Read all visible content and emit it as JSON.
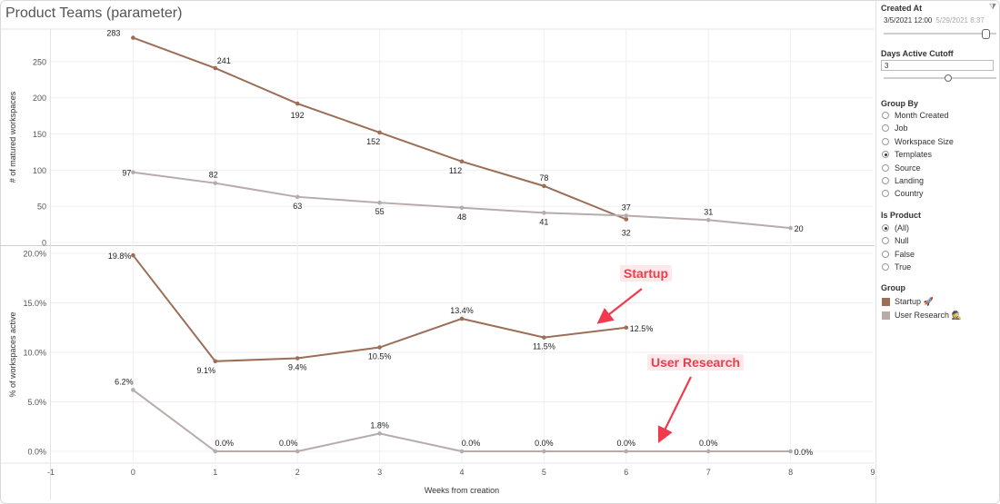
{
  "title": "Product Teams (parameter)",
  "chart_data": [
    {
      "type": "line",
      "ylabel": "# of matured workspaces",
      "yticks": [
        "0",
        "50",
        "100",
        "150",
        "200",
        "250"
      ],
      "ylim": [
        0,
        290
      ],
      "grid": true,
      "series": [
        {
          "name": "Startup",
          "color": "#9c6e57",
          "x": [
            0,
            1,
            2,
            3,
            4,
            5,
            6
          ],
          "values": [
            283,
            241,
            192,
            152,
            112,
            78,
            32
          ],
          "labels": [
            "283",
            "241",
            "192",
            "152",
            "112",
            "78",
            "32"
          ]
        },
        {
          "name": "User Research",
          "color": "#b6acaa",
          "x": [
            0,
            1,
            2,
            3,
            4,
            5,
            6,
            7,
            8
          ],
          "values": [
            97,
            82,
            63,
            55,
            48,
            41,
            37,
            31,
            20
          ],
          "labels": [
            "97",
            "82",
            "63",
            "55",
            "48",
            "41",
            "37",
            "31",
            "20"
          ]
        }
      ]
    },
    {
      "type": "line",
      "ylabel": "% of workspaces active",
      "yticks": [
        "0.0%",
        "5.0%",
        "10.0%",
        "15.0%",
        "20.0%"
      ],
      "ylim": [
        0,
        20
      ],
      "grid": true,
      "series": [
        {
          "name": "Startup",
          "color": "#9c6e57",
          "x": [
            0,
            1,
            2,
            3,
            4,
            5,
            6
          ],
          "values": [
            19.8,
            9.1,
            9.4,
            10.5,
            13.4,
            11.5,
            12.5
          ],
          "labels": [
            "19.8%",
            "9.1%",
            "9.4%",
            "10.5%",
            "13.4%",
            "11.5%",
            "12.5%"
          ]
        },
        {
          "name": "User Research",
          "color": "#b6acaa",
          "x": [
            0,
            1,
            2,
            3,
            4,
            5,
            6,
            7,
            8
          ],
          "values": [
            6.2,
            0.0,
            0.0,
            1.8,
            0.0,
            0.0,
            0.0,
            0.0,
            0.0
          ],
          "labels": [
            "6.2%",
            "0.0%",
            "0.0%",
            "1.8%",
            "0.0%",
            "0.0%",
            "0.0%",
            "0.0%",
            "0.0%"
          ]
        }
      ]
    }
  ],
  "xaxis": {
    "label": "Weeks from creation",
    "ticks": [
      "-1",
      "0",
      "1",
      "2",
      "3",
      "4",
      "5",
      "6",
      "7",
      "8",
      "9"
    ],
    "xlim": [
      -1,
      9
    ]
  },
  "annotations": [
    {
      "text": "Startup",
      "color": "#f23a4f"
    },
    {
      "text": "User Research",
      "color": "#f23a4f"
    }
  ],
  "panel": {
    "created_at": {
      "title": "Created At",
      "start": "3/5/2021 12:00",
      "end": "5/29/2021 8:37",
      "level": 0.9
    },
    "days_active": {
      "title": "Days Active Cutoff",
      "value": "3",
      "level": 0.6
    },
    "group_by": {
      "title": "Group By",
      "selected": 3,
      "options": [
        "Month Created",
        "Job",
        "Workspace Size",
        "Templates",
        "Source",
        "Landing",
        "Country"
      ]
    },
    "is_product": {
      "title": "Is Product",
      "selected": 0,
      "options": [
        "(All)",
        "Null",
        "False",
        "True"
      ]
    },
    "group": {
      "title": "Group",
      "items": [
        {
          "label": "Startup 🚀",
          "color": "#9c6e57"
        },
        {
          "label": "User Research 🕵️",
          "color": "#b6acaa"
        }
      ]
    }
  }
}
